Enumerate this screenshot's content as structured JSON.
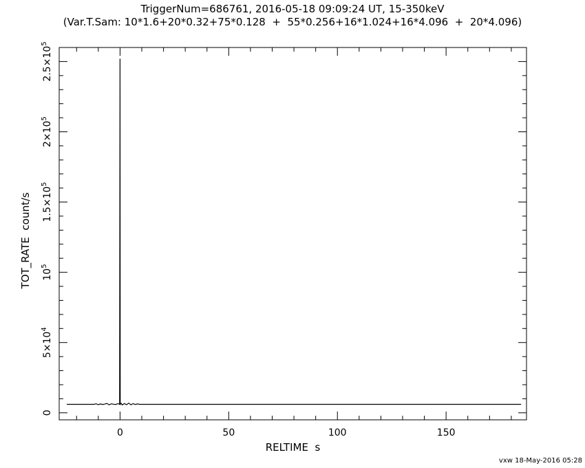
{
  "titles": {
    "line1": "TriggerNum=686761, 2016-05-18 09:09:24 UT, 15-350keV",
    "line2": "(Var.T.Sam: 10*1.6+20*0.32+75*0.128  +  55*0.256+16*1.024+16*4.096  +  20*4.096)"
  },
  "footer": "vxw 18-May-2016 05:28",
  "chart_data": {
    "type": "line",
    "xlabel": "RELTIME  s",
    "ylabel": "TOT_RATE  count/s",
    "xlim": [
      -28,
      187
    ],
    "ylim": [
      -5000,
      260000
    ],
    "x_ticks": [
      0,
      50,
      100,
      150
    ],
    "y_ticks": [
      {
        "value": 0,
        "base": "0",
        "exp": ""
      },
      {
        "value": 50000,
        "base": "5×10",
        "exp": "4"
      },
      {
        "value": 100000,
        "base": "10",
        "exp": "5"
      },
      {
        "value": 150000,
        "base": "1.5×10",
        "exp": "5"
      },
      {
        "value": 200000,
        "base": "2×10",
        "exp": "5"
      },
      {
        "value": 250000,
        "base": "2.5×10",
        "exp": "5"
      }
    ],
    "series": [
      {
        "x": [
          -24.5,
          -12,
          -11,
          -10,
          -9,
          -8,
          -7,
          -6,
          -5,
          -4,
          -3,
          -2,
          -1,
          -0.2,
          0,
          0.1,
          0.5,
          1,
          2,
          3,
          4,
          5,
          6,
          7,
          8,
          9,
          12,
          184.5
        ],
        "y": [
          6000,
          6000,
          6400,
          5800,
          6300,
          5900,
          6200,
          6600,
          5700,
          6400,
          6100,
          5900,
          6500,
          6000,
          252000,
          6000,
          6700,
          5600,
          6600,
          5800,
          6900,
          5700,
          6500,
          5900,
          6300,
          6000,
          6000,
          6000
        ]
      }
    ],
    "grid": false
  }
}
